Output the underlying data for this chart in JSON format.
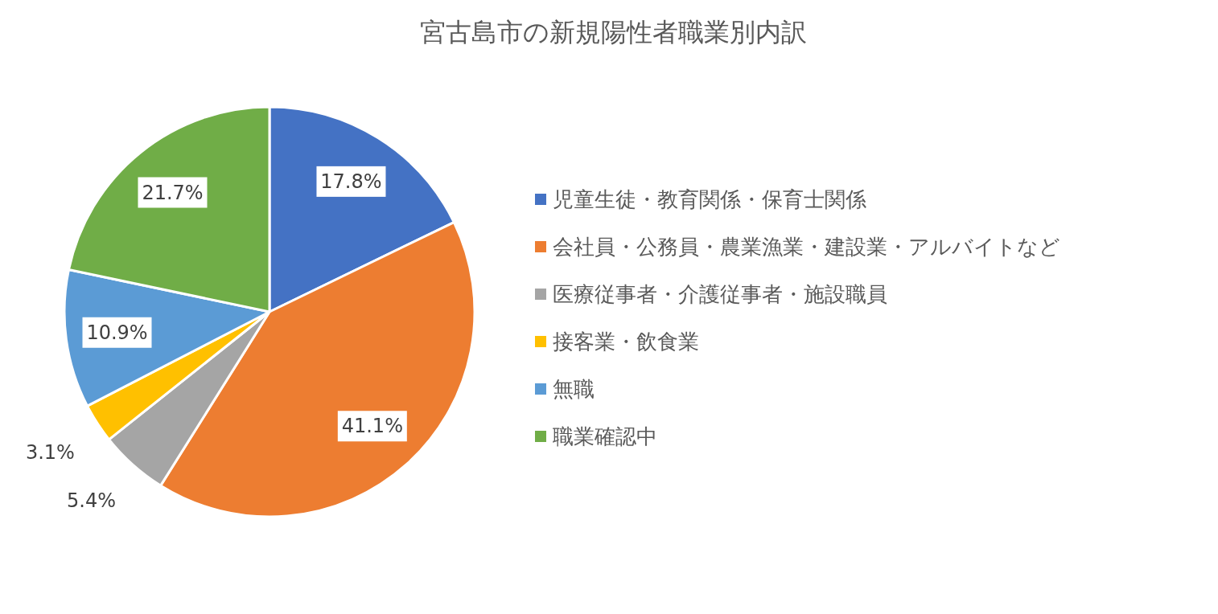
{
  "chart_data": {
    "type": "pie",
    "title": "宮古島市の新規陽性者職業別内訳",
    "categories": [
      "児童生徒・教育関係・保育士関係",
      "会社員・公務員・農業漁業・建設業・アルバイトなど",
      "医療従事者・介護従事者・施設職員",
      "接客業・飲食業",
      "無職",
      "職業確認中"
    ],
    "values": [
      17.8,
      41.1,
      5.4,
      3.1,
      10.9,
      21.7
    ],
    "value_labels": [
      "17.8%",
      "41.1%",
      "5.4%",
      "3.1%",
      "10.9%",
      "21.7%"
    ],
    "colors": [
      "#4472c4",
      "#ed7d31",
      "#a5a5a5",
      "#ffc000",
      "#5b9bd5",
      "#70ad47"
    ],
    "legend": "right"
  }
}
